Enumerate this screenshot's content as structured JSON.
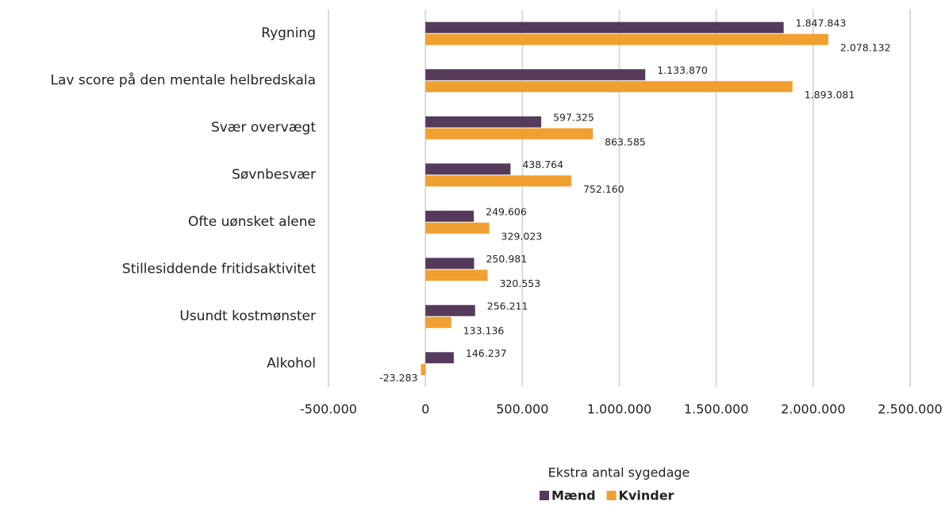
{
  "chart_data": {
    "type": "hbar",
    "x_label": "Ekstra antal sygedage",
    "categories": [
      "Rygning",
      "Lav score på den mentale helbredskala",
      "Svær overvægt",
      "Søvnbesvær",
      "Ofte uønsket alene",
      "Stillesiddende fritidsaktivitet",
      "Usundt kostmønster",
      "Alkohol"
    ],
    "series": [
      {
        "name": "Mænd",
        "color": "#553a5c",
        "values": [
          1847843,
          1133870,
          597325,
          438764,
          249606,
          250981,
          256211,
          146237
        ],
        "value_labels": [
          "1.847.843",
          "1.133.870",
          "597.325",
          "438.764",
          "249.606",
          "250.981",
          "256.211",
          "146.237"
        ]
      },
      {
        "name": "Kvinder",
        "color": "#f0a030",
        "values": [
          2078132,
          1893081,
          863585,
          752160,
          329023,
          320553,
          133136,
          -23283
        ],
        "value_labels": [
          "2.078.132",
          "1.893.081",
          "863.585",
          "752.160",
          "329.023",
          "320.553",
          "133.136",
          "-23.283"
        ]
      }
    ],
    "xlim": [
      -500000,
      2500000
    ],
    "xticks": [
      {
        "value": -500000,
        "label": "-500.000"
      },
      0,
      {
        "value": 500000,
        "label": "500.000"
      },
      {
        "value": 1000000,
        "label": "1.000.000"
      },
      {
        "value": 1500000,
        "label": "1.500.000"
      },
      {
        "value": 2000000,
        "label": "2.000.000"
      },
      {
        "value": 2500000,
        "label": "2.500.000"
      }
    ],
    "grid": true,
    "legend": "bottom"
  }
}
